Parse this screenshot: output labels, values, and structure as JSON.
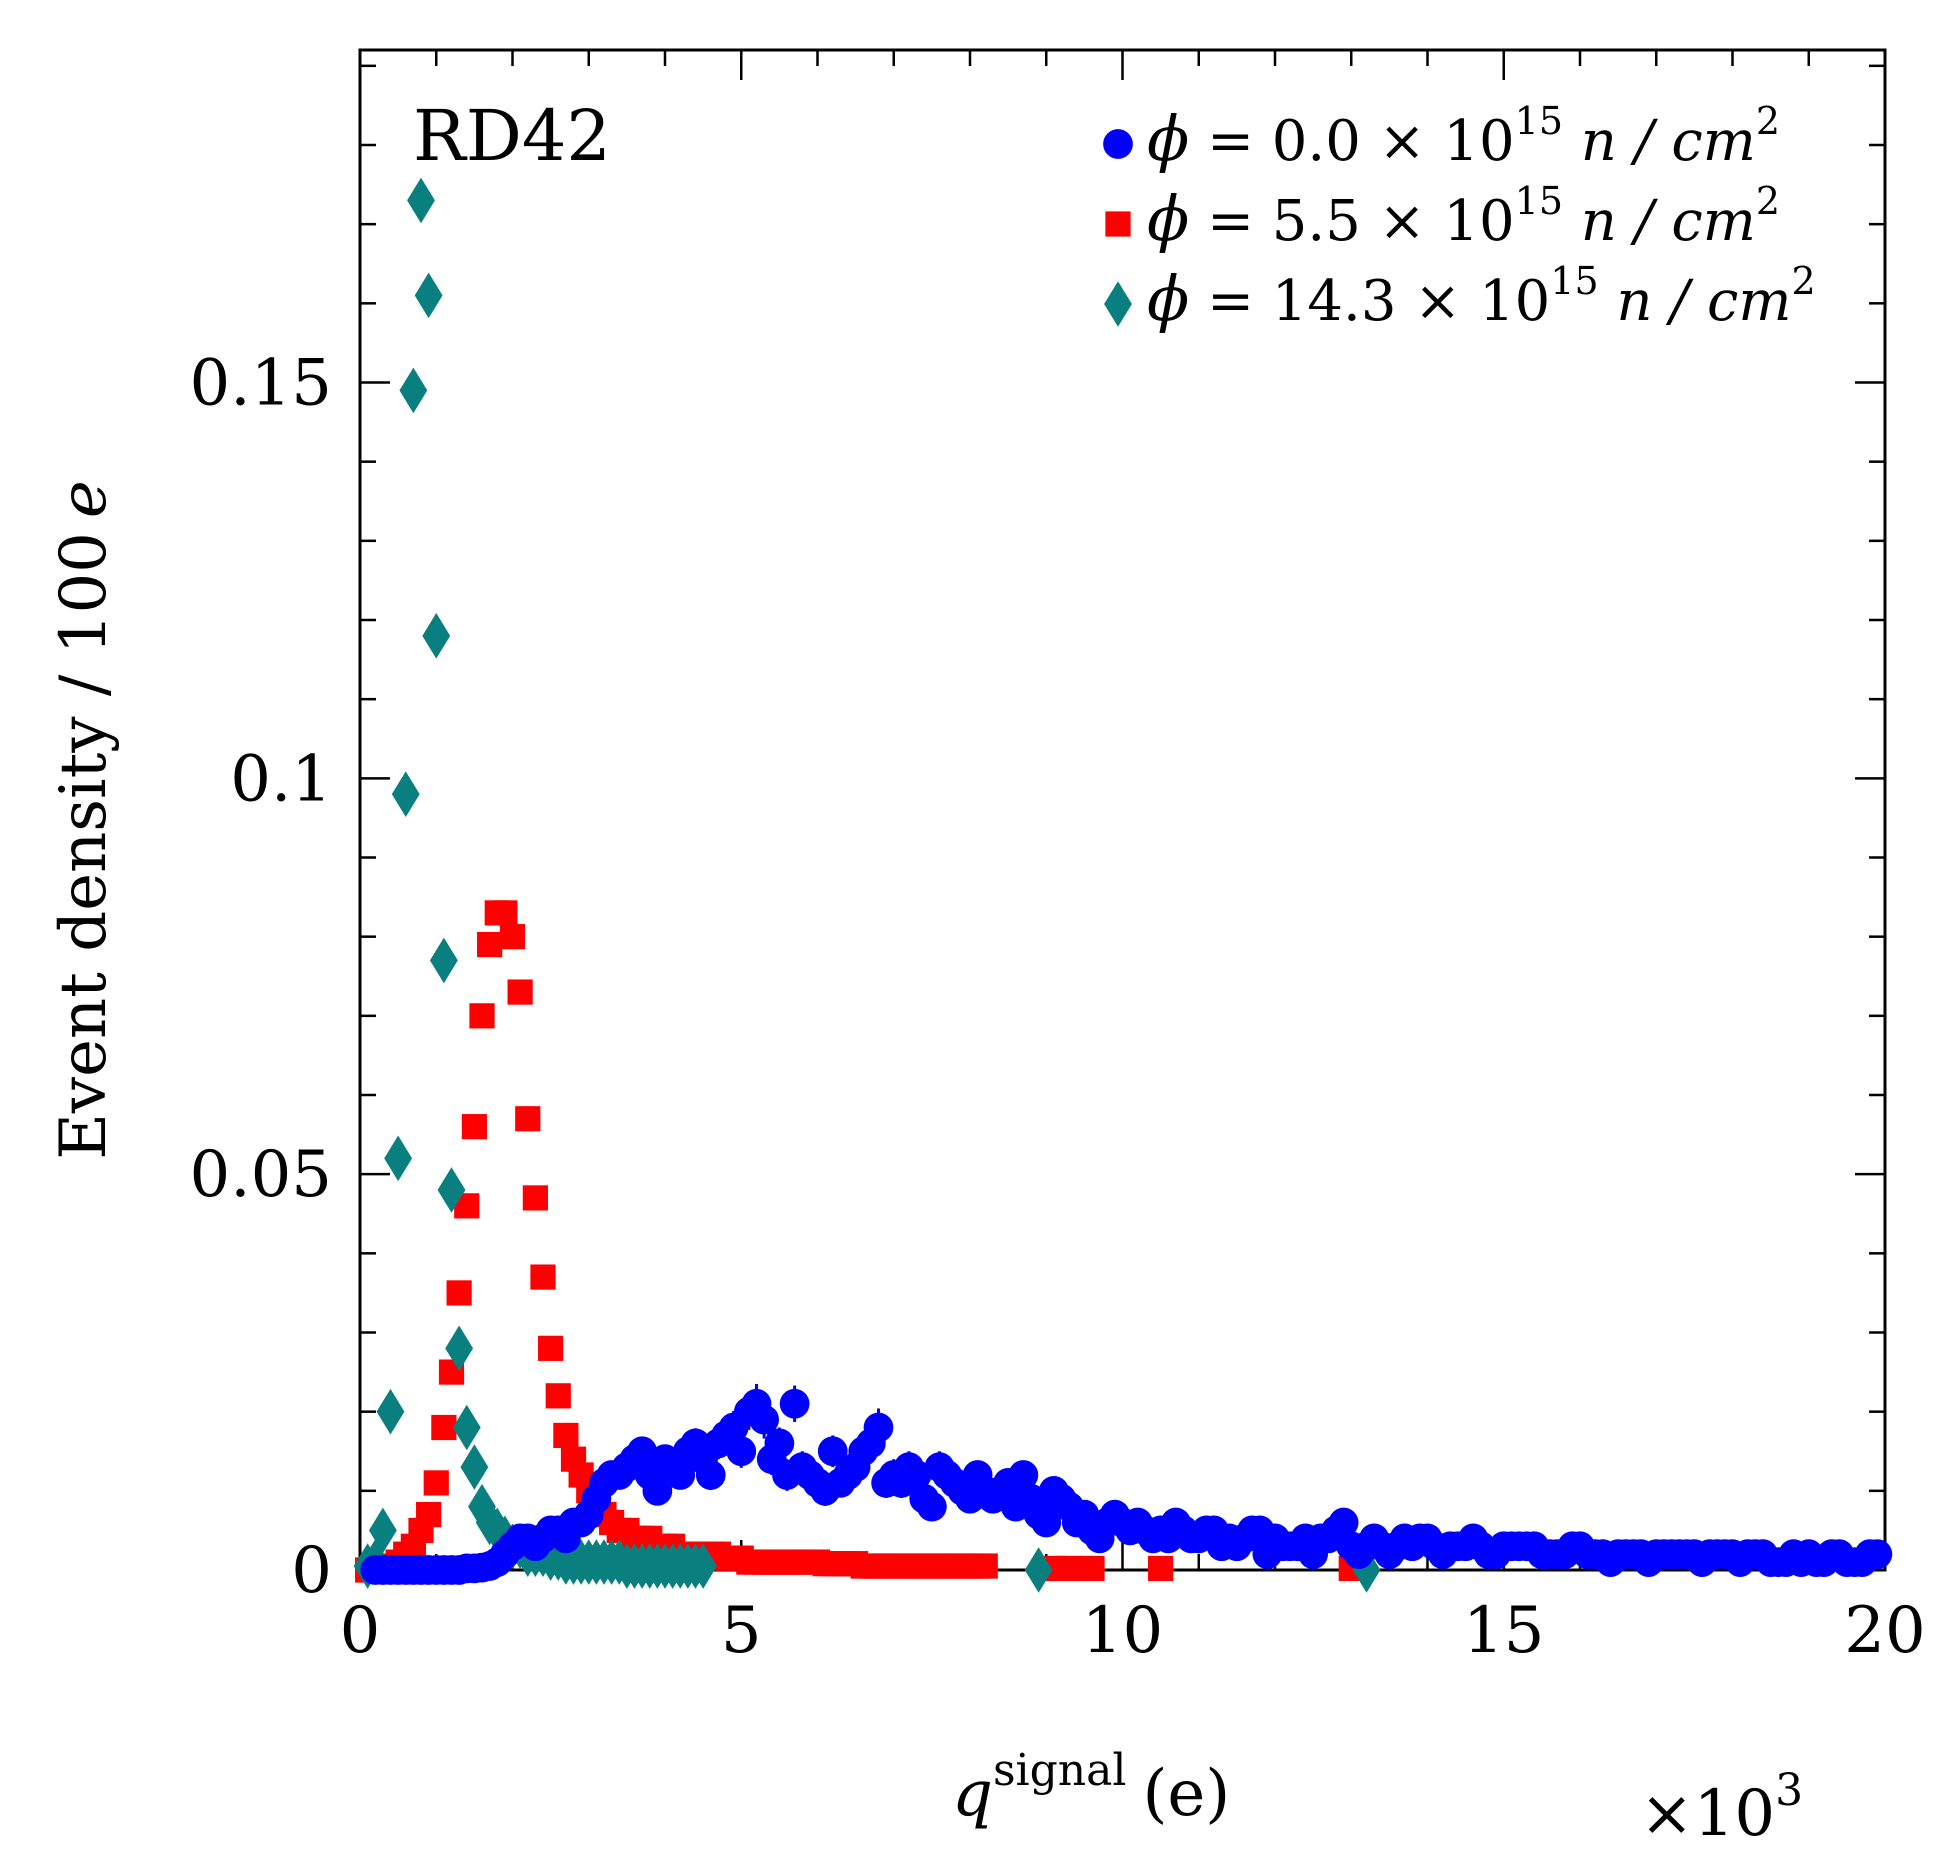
{
  "chart_data": {
    "type": "scatter",
    "title": "",
    "annotation": "RD42",
    "xlabel": {
      "var": "q",
      "sup": "signal",
      "unit": "(e)"
    },
    "x_scale_label": {
      "prefix": "×10",
      "exp": "3"
    },
    "ylabel": "Event density  /  100",
    "ylabel_unit": "e",
    "xlim": [
      0,
      20000
    ],
    "ylim": [
      0,
      0.192
    ],
    "x_ticks": [
      0,
      5000,
      10000,
      15000,
      20000
    ],
    "x_tick_labels": [
      "0",
      "5",
      "10",
      "15",
      "20"
    ],
    "y_ticks": [
      0,
      0.05,
      0.1,
      0.15
    ],
    "y_tick_labels": [
      "0",
      "0.05",
      "0.1",
      "0.15"
    ],
    "legend_position": "top-right",
    "series": [
      {
        "name": "phi0",
        "legend": {
          "phi": "ϕ",
          "eq": "= 0.0 ×",
          "base": "10",
          "exp": "15",
          "unit": "n / cm",
          "unit_exp": "2"
        },
        "marker": "circle",
        "color": "#0000ff",
        "x": [
          200,
          300,
          400,
          500,
          600,
          700,
          800,
          900,
          1000,
          1100,
          1200,
          1300,
          1400,
          1500,
          1600,
          1700,
          1800,
          1900,
          2000,
          2100,
          2200,
          2300,
          2400,
          2500,
          2600,
          2700,
          2800,
          2900,
          3000,
          3100,
          3200,
          3300,
          3400,
          3500,
          3600,
          3700,
          3800,
          3900,
          4000,
          4100,
          4200,
          4300,
          4400,
          4500,
          4600,
          4700,
          4800,
          4900,
          5000,
          5100,
          5200,
          5300,
          5400,
          5500,
          5600,
          5700,
          5800,
          5900,
          6000,
          6100,
          6200,
          6300,
          6400,
          6500,
          6600,
          6700,
          6800,
          6900,
          7000,
          7100,
          7200,
          7300,
          7400,
          7500,
          7600,
          7700,
          7800,
          7900,
          8000,
          8100,
          8200,
          8300,
          8400,
          8500,
          8600,
          8700,
          8800,
          8900,
          9000,
          9100,
          9200,
          9300,
          9400,
          9500,
          9600,
          9700,
          9800,
          9900,
          10000,
          10100,
          10200,
          10300,
          10400,
          10500,
          10600,
          10700,
          10800,
          10900,
          11000,
          11100,
          11200,
          11300,
          11400,
          11500,
          11600,
          11700,
          11800,
          11900,
          12000,
          12100,
          12200,
          12300,
          12400,
          12500,
          12600,
          12700,
          12800,
          12900,
          13000,
          13100,
          13200,
          13300,
          13400,
          13500,
          13600,
          13700,
          13800,
          13900,
          14000,
          14100,
          14200,
          14300,
          14400,
          14500,
          14600,
          14700,
          14800,
          14900,
          15000,
          15100,
          15200,
          15300,
          15400,
          15500,
          15600,
          15700,
          15800,
          15900,
          16000,
          16100,
          16200,
          16300,
          16400,
          16500,
          16600,
          16700,
          16800,
          16900,
          17000,
          17100,
          17200,
          17300,
          17400,
          17500,
          17600,
          17700,
          17800,
          17900,
          18000,
          18100,
          18200,
          18300,
          18400,
          18500,
          18600,
          18700,
          18800,
          18900,
          19000,
          19100,
          19200,
          19300,
          19400,
          19500,
          19600,
          19700,
          19800,
          19900
        ],
        "y": [
          0,
          0,
          0,
          0,
          0,
          0,
          0,
          0,
          0,
          0,
          0,
          0,
          0.0002,
          0.0002,
          0.0003,
          0.0005,
          0.001,
          0.002,
          0.003,
          0.004,
          0.004,
          0.003,
          0.004,
          0.005,
          0.005,
          0.004,
          0.006,
          0.006,
          0.007,
          0.009,
          0.011,
          0.012,
          0.012,
          0.013,
          0.014,
          0.015,
          0.012,
          0.01,
          0.014,
          0.013,
          0.012,
          0.015,
          0.016,
          0.014,
          0.012,
          0.016,
          0.017,
          0.018,
          0.015,
          0.02,
          0.021,
          0.019,
          0.014,
          0.016,
          0.012,
          0.021,
          0.013,
          0.012,
          0.011,
          0.01,
          0.015,
          0.011,
          0.012,
          0.013,
          0.015,
          0.016,
          0.018,
          0.011,
          0.012,
          0.011,
          0.013,
          0.012,
          0.009,
          0.008,
          0.013,
          0.012,
          0.011,
          0.01,
          0.009,
          0.012,
          0.01,
          0.009,
          0.01,
          0.011,
          0.008,
          0.012,
          0.009,
          0.007,
          0.006,
          0.01,
          0.009,
          0.008,
          0.006,
          0.007,
          0.005,
          0.004,
          0.006,
          0.007,
          0.006,
          0.005,
          0.006,
          0.005,
          0.004,
          0.005,
          0.004,
          0.006,
          0.005,
          0.004,
          0.004,
          0.005,
          0.005,
          0.003,
          0.004,
          0.003,
          0.004,
          0.005,
          0.005,
          0.002,
          0.004,
          0.003,
          0.003,
          0.003,
          0.004,
          0.002,
          0.004,
          0.004,
          0.005,
          0.006,
          0.003,
          0.002,
          0.003,
          0.004,
          0.003,
          0.002,
          0.003,
          0.004,
          0.003,
          0.004,
          0.004,
          0.003,
          0.002,
          0.003,
          0.003,
          0.003,
          0.004,
          0.003,
          0.002,
          0.002,
          0.003,
          0.003,
          0.003,
          0.003,
          0.003,
          0.002,
          0.002,
          0.002,
          0.002,
          0.003,
          0.003,
          0.002,
          0.002,
          0.002,
          0.001,
          0.002,
          0.002,
          0.002,
          0.002,
          0.001,
          0.002,
          0.002,
          0.002,
          0.002,
          0.002,
          0.002,
          0.001,
          0.002,
          0.002,
          0.002,
          0.002,
          0.001,
          0.002,
          0.002,
          0.002,
          0.001,
          0.001,
          0.001,
          0.002,
          0.001,
          0.002,
          0.001,
          0.001,
          0.002,
          0.002,
          0.001,
          0.001,
          0.001,
          0.002,
          0.002
        ],
        "err": [
          0,
          0,
          0,
          0,
          0,
          0,
          0,
          0,
          0,
          0,
          0,
          0,
          0,
          0,
          0,
          0,
          0,
          0,
          0,
          0,
          0,
          0,
          0,
          0,
          0,
          0,
          0,
          0,
          0.0012,
          0.0013,
          0.0013,
          0.0014,
          0.0015,
          0.0016,
          0.0017,
          0.0017,
          0.0016,
          0.0016,
          0.0017,
          0.0017,
          0.0018,
          0.0018,
          0.0019,
          0.0019,
          0.0019,
          0.002,
          0.002,
          0.0021,
          0.0021,
          0.0023,
          0.0025,
          0.0024,
          0.002,
          0.002,
          0.002,
          0.0023,
          0.002,
          0.0019,
          0.0019,
          0.0019,
          0.002,
          0.0018,
          0.0019,
          0.002,
          0.0021,
          0.0022,
          0.0024,
          0.0019,
          0.002,
          0.0019,
          0.002,
          0.0019,
          0.0017,
          0.0016,
          0.002,
          0.0019,
          0.0018,
          0.0017,
          0.0016,
          0.0018,
          0.0017,
          0.0016,
          0.0016,
          0.0017,
          0.0015,
          0.0017,
          0.0015,
          0.0014,
          0.0013,
          0.0016,
          0.0015,
          0.0014,
          0.0013,
          0.0013,
          0.0012,
          0.0012,
          0.0013,
          0.0013,
          0.0012,
          0.0012,
          0.0012,
          0.0012,
          0.0011,
          0.0011,
          0.0011,
          0.0012,
          0.0011,
          0.0011,
          0.0011,
          0.0011,
          0.0011,
          0.001,
          0.001,
          0.001,
          0.001,
          0.0011,
          0.0011,
          0.0009,
          0.001,
          0.001,
          0.001,
          0.001,
          0.001,
          0.0009,
          0.001,
          0.001,
          0.0011,
          0.0011,
          0.0009,
          0.0009,
          0.0009,
          0.001,
          0.0009,
          0.0009,
          0.0009,
          0.001,
          0.0009,
          0.001,
          0.001,
          0.0009,
          0.0008,
          0.0009,
          0.0009,
          0.0009,
          0.001,
          0.0009,
          0.0008,
          0.0008,
          0.0009,
          0.0009,
          0.0009,
          0.0009,
          0.0009,
          0.0008,
          0.0008,
          0.0008,
          0.0008,
          0.0009,
          0.0009,
          0.0008,
          0.0008,
          0.0008,
          0.0007,
          0.0008,
          0.0008,
          0.0008,
          0.0008,
          0.0007,
          0.0008,
          0.0008,
          0.0008,
          0.0008,
          0.0008,
          0.0008,
          0.0007,
          0.0008,
          0.0008,
          0.0008,
          0.0008,
          0.0007,
          0.0008,
          0.0008,
          0.0008,
          0.0007,
          0.0007,
          0.0007,
          0.0008,
          0.0007,
          0.0008,
          0.0007,
          0.0007,
          0.0008,
          0.0008,
          0.0007,
          0.0007,
          0.0007,
          0.0008,
          0.0008
        ]
      },
      {
        "name": "phi55",
        "legend": {
          "phi": "ϕ",
          "eq": "= 5.5 ×",
          "base": "10",
          "exp": "15",
          "unit": "n / cm",
          "unit_exp": "2"
        },
        "marker": "square",
        "color": "#ff0000",
        "x": [
          100,
          200,
          300,
          400,
          500,
          600,
          700,
          800,
          900,
          1000,
          1100,
          1200,
          1300,
          1400,
          1500,
          1600,
          1700,
          1800,
          1900,
          2000,
          2100,
          2200,
          2300,
          2400,
          2500,
          2600,
          2700,
          2800,
          2900,
          3000,
          3100,
          3200,
          3300,
          3400,
          3500,
          3600,
          3700,
          3800,
          3900,
          4000,
          4100,
          4200,
          4300,
          4400,
          4500,
          4600,
          4700,
          4800,
          4900,
          5000,
          5100,
          5200,
          5300,
          5400,
          5500,
          5600,
          5700,
          5800,
          5900,
          6000,
          6100,
          6200,
          6300,
          6400,
          6500,
          6600,
          6700,
          6800,
          6900,
          7000,
          7100,
          7200,
          7300,
          7400,
          7500,
          7600,
          7700,
          7800,
          7900,
          8000,
          8100,
          8200,
          9100,
          9300,
          9600,
          10500,
          13000
        ],
        "y": [
          0,
          0,
          0,
          0.0005,
          0.001,
          0.002,
          0.003,
          0.005,
          0.007,
          0.011,
          0.018,
          0.025,
          0.035,
          0.046,
          0.056,
          0.07,
          0.079,
          0.083,
          0.083,
          0.08,
          0.073,
          0.057,
          0.047,
          0.037,
          0.028,
          0.022,
          0.017,
          0.014,
          0.012,
          0.01,
          0.008,
          0.007,
          0.006,
          0.005,
          0.005,
          0.004,
          0.004,
          0.004,
          0.003,
          0.003,
          0.003,
          0.002,
          0.002,
          0.002,
          0.002,
          0.002,
          0.002,
          0.0015,
          0.0015,
          0.0015,
          0.001,
          0.001,
          0.001,
          0.001,
          0.001,
          0.001,
          0.001,
          0.001,
          0.001,
          0.001,
          0.0008,
          0.0008,
          0.0008,
          0.0008,
          0.0008,
          0.0005,
          0.0005,
          0.0005,
          0.0005,
          0.0005,
          0.0005,
          0.0005,
          0.0005,
          0.0005,
          0.0005,
          0.0005,
          0.0005,
          0.0005,
          0.0005,
          0.0005,
          0.0005,
          0.0005,
          0.0002,
          0.0002,
          0.0002,
          0.0002,
          0.0002
        ]
      },
      {
        "name": "phi143",
        "legend": {
          "phi": "ϕ",
          "eq": "= 14.3 ×",
          "base": "10",
          "exp": "15",
          "unit": "n / cm",
          "unit_exp": "2"
        },
        "marker": "diamond",
        "color": "#0a7f7f",
        "x": [
          100,
          200,
          300,
          400,
          500,
          600,
          700,
          800,
          900,
          1000,
          1100,
          1200,
          1300,
          1400,
          1500,
          1600,
          1700,
          1800,
          1900,
          2000,
          2100,
          2200,
          2300,
          2400,
          2500,
          2600,
          2700,
          2800,
          2900,
          3000,
          3100,
          3200,
          3300,
          3400,
          3500,
          3600,
          3700,
          3800,
          3900,
          4000,
          4100,
          4200,
          4300,
          4400,
          4500,
          8900,
          13200
        ],
        "y": [
          0.0005,
          0.001,
          0.005,
          0.02,
          0.052,
          0.098,
          0.149,
          0.173,
          0.161,
          0.118,
          0.077,
          0.048,
          0.028,
          0.018,
          0.013,
          0.008,
          0.006,
          0.005,
          0.004,
          0.003,
          0.003,
          0.002,
          0.002,
          0.002,
          0.0015,
          0.0015,
          0.001,
          0.001,
          0.001,
          0.001,
          0.001,
          0.001,
          0.001,
          0.001,
          0.0005,
          0.0005,
          0.0005,
          0.0005,
          0.0005,
          0.0005,
          0.0005,
          0.0005,
          0.0005,
          0.0005,
          0.0005,
          0,
          0
        ]
      }
    ]
  }
}
